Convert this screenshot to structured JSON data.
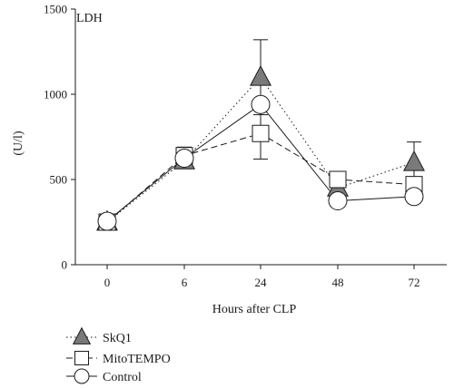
{
  "chart_data": {
    "type": "line",
    "title": "",
    "panel_label": "LDH",
    "xlabel": "Hours after CLP",
    "ylabel": "(U/l)",
    "categories": [
      "0",
      "6",
      "24",
      "48",
      "72"
    ],
    "ylim": [
      0,
      1500
    ],
    "yticks": [
      "0",
      "500",
      "1000",
      "1500"
    ],
    "grid": false,
    "legend_position": "bottom-left",
    "series": [
      {
        "name": "SkQ1",
        "marker": "triangle",
        "fill": "#7a7a7a",
        "line_style": "dotted",
        "values": [
          250,
          610,
          1100,
          450,
          600
        ],
        "errors": [
          0,
          0,
          220,
          0,
          120
        ]
      },
      {
        "name": "MitoTEMPO",
        "marker": "square",
        "fill": "#ffffff",
        "line_style": "dashed",
        "values": [
          250,
          640,
          770,
          500,
          470
        ],
        "errors": [
          0,
          50,
          150,
          0,
          0
        ]
      },
      {
        "name": "Control",
        "marker": "circle",
        "fill": "#ffffff",
        "line_style": "solid",
        "values": [
          255,
          625,
          940,
          375,
          400
        ],
        "errors": [
          0,
          0,
          0,
          0,
          0
        ]
      }
    ]
  }
}
